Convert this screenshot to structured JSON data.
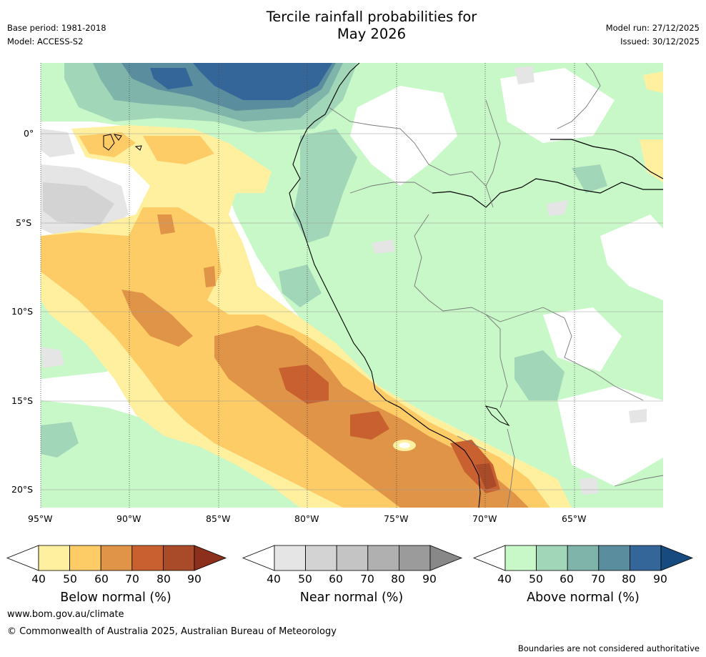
{
  "header": {
    "title_line1": "Tercile rainfall probabilities for",
    "title_line2": "May 2026",
    "base_period": "Base period: 1981-2018",
    "model": "Model: ACCESS-S2",
    "model_run": "Model run: 27/12/2025",
    "issued": "Issued: 30/12/2025"
  },
  "map": {
    "lat_labels": [
      "0°",
      "5°S",
      "10°S",
      "15°S",
      "20°S"
    ],
    "lon_labels": [
      "95°W",
      "90°W",
      "85°W",
      "80°W",
      "75°W",
      "70°W",
      "65°W"
    ],
    "colors": {
      "below": [
        "#fff0a0",
        "#fdcc66",
        "#e09448",
        "#c8612f",
        "#a94a28",
        "#8c2f1c"
      ],
      "near": [
        "#e5e5e5",
        "#d3d3d3",
        "#c4c4c4",
        "#b0b0b0",
        "#9b9b9b",
        "#888888"
      ],
      "above": [
        "#c8f8c8",
        "#a2d6b8",
        "#7fb4ab",
        "#5a8e9e",
        "#35669a",
        "#174b80"
      ]
    }
  },
  "colorbars": [
    {
      "name": "below",
      "label": "Below normal (%)",
      "ticks": [
        "40",
        "50",
        "60",
        "70",
        "80",
        "90"
      ]
    },
    {
      "name": "near",
      "label": "Near normal (%)",
      "ticks": [
        "40",
        "50",
        "60",
        "70",
        "80",
        "90"
      ]
    },
    {
      "name": "above",
      "label": "Above normal (%)",
      "ticks": [
        "40",
        "50",
        "60",
        "70",
        "80",
        "90"
      ]
    }
  ],
  "footer": {
    "url": "www.bom.gov.au/climate",
    "copyright": "© Commonwealth of Australia 2025, Australian Bureau of Meteorology",
    "disclaimer": "Boundaries are not considered authoritative"
  }
}
